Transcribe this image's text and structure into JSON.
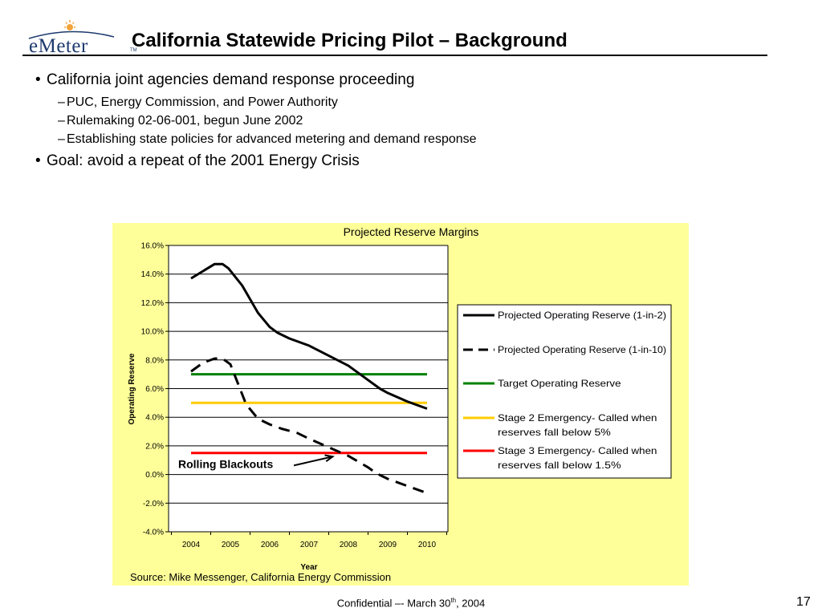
{
  "logo": {
    "text": "eMeter",
    "tm": "TM"
  },
  "slide": {
    "title": "California Statewide Pricing Pilot – Background",
    "bullets": [
      {
        "text": "California joint agencies demand response proceeding",
        "subs": [
          "PUC, Energy Commission, and Power Authority",
          "Rulemaking 02-06-001, begun June 2002",
          "Establishing state policies for advanced metering and demand response"
        ]
      },
      {
        "text": "Goal: avoid a repeat of the 2001 Energy Crisis",
        "subs": []
      }
    ]
  },
  "chart_data": {
    "type": "line",
    "title": "Projected Reserve Margins",
    "xlabel": "Year",
    "ylabel": "Operating Reserve",
    "x": [
      "2004",
      "2005",
      "2006",
      "2007",
      "2008",
      "2009",
      "2010"
    ],
    "xlim": [
      2004,
      2010
    ],
    "ylim": [
      -4.0,
      16.0
    ],
    "y_ticks": [
      "16.0%",
      "14.0%",
      "12.0%",
      "10.0%",
      "8.0%",
      "6.0%",
      "4.0%",
      "2.0%",
      "0.0%",
      "-2.0%",
      "-4.0%"
    ],
    "grid": true,
    "legend_position": "right",
    "series": [
      {
        "name": "Projected Operating Reserve (1-in-2)",
        "color": "#000000",
        "style": "solid",
        "points": [
          [
            2004.0,
            13.7
          ],
          [
            2004.3,
            14.2
          ],
          [
            2004.6,
            14.7
          ],
          [
            2004.8,
            14.7
          ],
          [
            2004.95,
            14.4
          ],
          [
            2005.3,
            13.2
          ],
          [
            2005.7,
            11.3
          ],
          [
            2006.0,
            10.3
          ],
          [
            2006.2,
            9.9
          ],
          [
            2006.5,
            9.5
          ],
          [
            2007.0,
            9.0
          ],
          [
            2007.5,
            8.3
          ],
          [
            2008.0,
            7.6
          ],
          [
            2008.5,
            6.6
          ],
          [
            2008.8,
            6.0
          ],
          [
            2009.0,
            5.7
          ],
          [
            2009.5,
            5.1
          ],
          [
            2010.0,
            4.6
          ]
        ]
      },
      {
        "name": "Projected Operating Reserve (1-in-10)",
        "color": "#000000",
        "style": "dashed",
        "points": [
          [
            2004.0,
            7.2
          ],
          [
            2004.3,
            7.8
          ],
          [
            2004.6,
            8.1
          ],
          [
            2004.8,
            8.1
          ],
          [
            2005.0,
            7.7
          ],
          [
            2005.2,
            6.3
          ],
          [
            2005.4,
            4.9
          ],
          [
            2005.7,
            3.9
          ],
          [
            2006.0,
            3.5
          ],
          [
            2006.3,
            3.2
          ],
          [
            2006.7,
            2.9
          ],
          [
            2007.0,
            2.5
          ],
          [
            2007.5,
            1.9
          ],
          [
            2008.0,
            1.3
          ],
          [
            2008.5,
            0.5
          ],
          [
            2008.7,
            0.1
          ],
          [
            2009.0,
            -0.3
          ],
          [
            2009.5,
            -0.8
          ],
          [
            2010.0,
            -1.3
          ]
        ]
      },
      {
        "name": "Target Operating Reserve",
        "color": "#008000",
        "style": "solid",
        "points": [
          [
            2004,
            7.0
          ],
          [
            2010,
            7.0
          ]
        ]
      },
      {
        "name": "Stage 2  Emergency- Called when reserves fall below 5%",
        "color": "#ffcc00",
        "style": "solid",
        "points": [
          [
            2004,
            5.0
          ],
          [
            2010,
            5.0
          ]
        ]
      },
      {
        "name": "Stage 3  Emergency- Called when reserves fall below 1.5%",
        "color": "#ff0000",
        "style": "solid",
        "points": [
          [
            2004,
            1.5
          ],
          [
            2010,
            1.5
          ]
        ]
      }
    ],
    "legend_lines": [
      [
        "Projected Operating Reserve (1-in-2)"
      ],
      [
        "Projected Operating Reserve (1-in-10)"
      ],
      [
        "Target Operating Reserve"
      ],
      [
        "Stage 2  Emergency- Called when",
        "reserves fall below 5%"
      ],
      [
        "Stage 3  Emergency- Called when",
        "reserves fall below 1.5%"
      ]
    ],
    "annotation": {
      "text": "Rolling Blackouts",
      "arrow_from": [
        2006.4,
        0.5
      ],
      "arrow_to": [
        2007.6,
        1.25
      ]
    },
    "source": "Source: Mike Messenger, California Energy Commission"
  },
  "footer": {
    "prefix": "Confidential –- March 30",
    "sup": "th",
    "suffix": ", 2004",
    "page": "17"
  }
}
